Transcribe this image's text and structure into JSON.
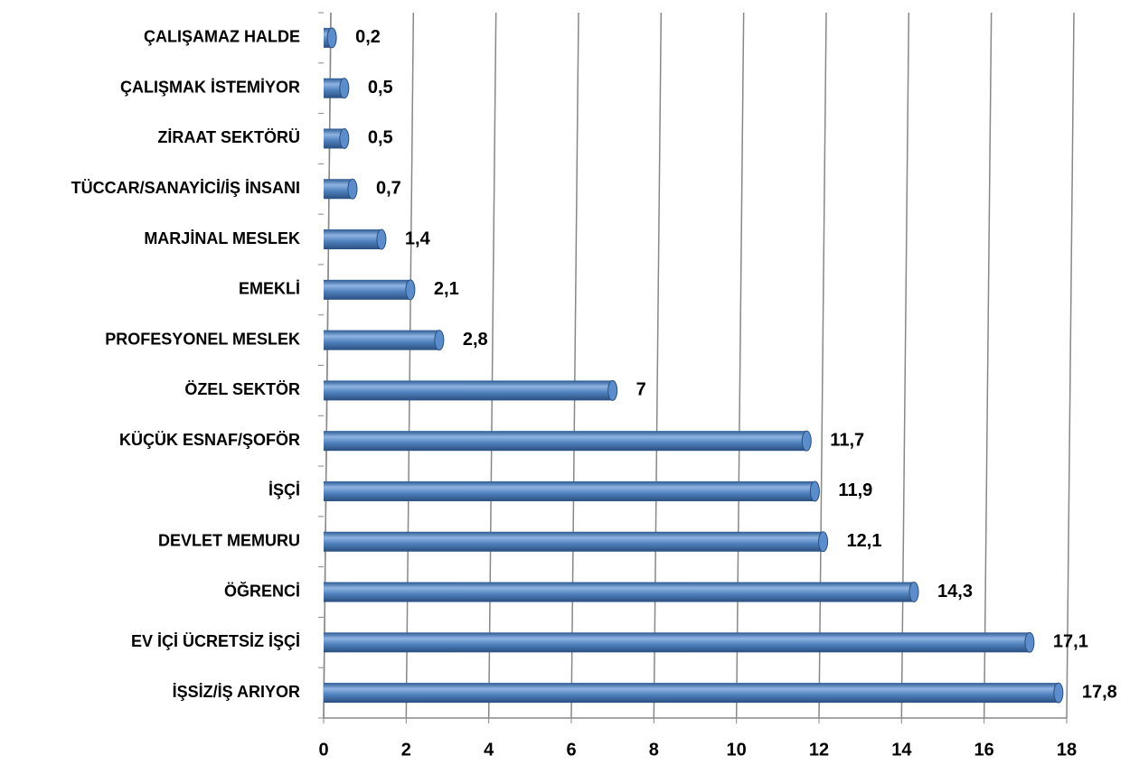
{
  "chart_data": {
    "type": "bar",
    "orientation": "horizontal",
    "categories": [
      "ÇALIŞAMAZ HALDE",
      "ÇALIŞMAK İSTEMİYOR",
      "ZİRAAT SEKTÖRÜ",
      "TÜCCAR/SANAYİCİ/İŞ İNSANI",
      "MARJİNAL MESLEK",
      "EMEKLİ",
      "PROFESYONEL MESLEK",
      "ÖZEL SEKTÖR",
      "KÜÇÜK ESNAF/ŞOFÖR",
      "İŞÇİ",
      "DEVLET MEMURU",
      "ÖĞRENCİ",
      "EV İÇİ ÜCRETSİZ İŞÇİ",
      "İŞSİZ/İŞ ARIYOR"
    ],
    "values": [
      0.2,
      0.5,
      0.5,
      0.7,
      1.4,
      2.1,
      2.8,
      7,
      11.7,
      11.9,
      12.1,
      14.3,
      17.1,
      17.8
    ],
    "value_labels": [
      "0,2",
      "0,5",
      "0,5",
      "0,7",
      "1,4",
      "2,1",
      "2,8",
      "7",
      "11,7",
      "11,9",
      "12,1",
      "14,3",
      "17,1",
      "17,8"
    ],
    "color": "#4f81bd",
    "xlim": [
      0,
      18
    ],
    "xticks": [
      0,
      2,
      4,
      6,
      8,
      10,
      12,
      14,
      16,
      18
    ],
    "grid": true
  }
}
